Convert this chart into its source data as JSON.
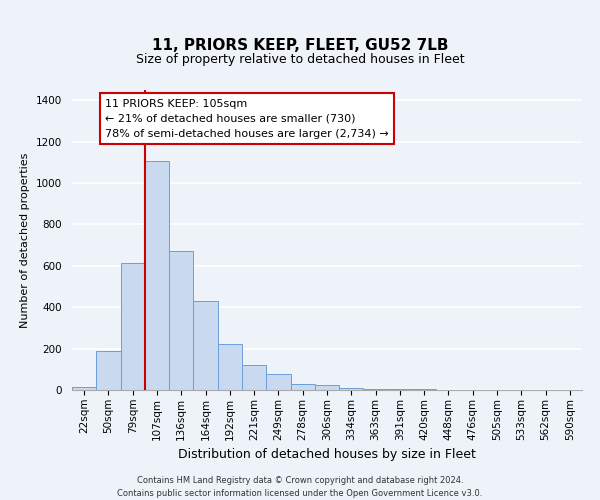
{
  "title": "11, PRIORS KEEP, FLEET, GU52 7LB",
  "subtitle": "Size of property relative to detached houses in Fleet",
  "xlabel": "Distribution of detached houses by size in Fleet",
  "ylabel": "Number of detached properties",
  "bar_color": "#c9d9f0",
  "bar_edge_color": "#6a9fd8",
  "categories": [
    "22sqm",
    "50sqm",
    "79sqm",
    "107sqm",
    "136sqm",
    "164sqm",
    "192sqm",
    "221sqm",
    "249sqm",
    "278sqm",
    "306sqm",
    "334sqm",
    "363sqm",
    "391sqm",
    "420sqm",
    "448sqm",
    "476sqm",
    "505sqm",
    "533sqm",
    "562sqm",
    "590sqm"
  ],
  "values": [
    15,
    190,
    615,
    1105,
    670,
    430,
    220,
    120,
    75,
    30,
    25,
    10,
    5,
    5,
    3,
    2,
    2,
    1,
    1,
    1,
    1
  ],
  "ylim": [
    0,
    1450
  ],
  "yticks": [
    0,
    200,
    400,
    600,
    800,
    1000,
    1200,
    1400
  ],
  "red_line_index": 3,
  "annotation_text": "11 PRIORS KEEP: 105sqm\n← 21% of detached houses are smaller (730)\n78% of semi-detached houses are larger (2,734) →",
  "footer_line1": "Contains HM Land Registry data © Crown copyright and database right 2024.",
  "footer_line2": "Contains public sector information licensed under the Open Government Licence v3.0.",
  "bg_color": "#eef2f9",
  "plot_bg_color": "#eef2f9",
  "grid_color": "#ffffff",
  "annotation_box_edge": "#cc0000",
  "red_line_color": "#cc0000",
  "title_fontsize": 11,
  "subtitle_fontsize": 9,
  "ylabel_fontsize": 8,
  "xlabel_fontsize": 9,
  "tick_fontsize": 7.5,
  "annotation_fontsize": 8,
  "footer_fontsize": 6
}
